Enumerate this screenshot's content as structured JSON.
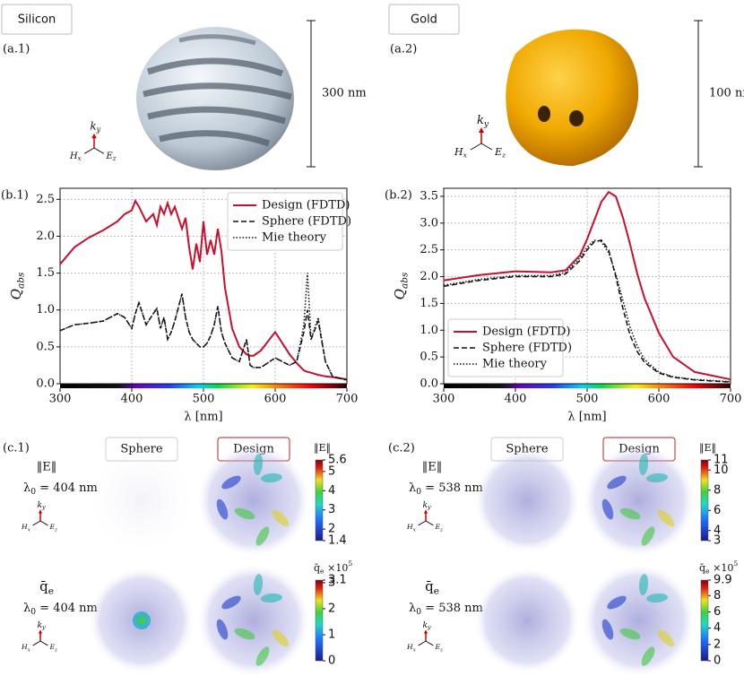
{
  "materials": [
    {
      "name": "Silicon",
      "tag": "(a.1)",
      "scale": "300 nm"
    },
    {
      "name": "Gold",
      "tag": "(a.2)",
      "scale": "100 nm"
    }
  ],
  "axes": {
    "k": {
      "base": "k",
      "sub": "y"
    },
    "h": {
      "base": "H",
      "sub": "x"
    },
    "e": {
      "base": "E",
      "sub": "z"
    }
  },
  "chart_data": [
    {
      "type": "line",
      "tag": "(b.1)",
      "xlabel": "λ [nm]",
      "ylabel": {
        "base": "Q",
        "sub": "abs"
      },
      "x": [
        300,
        320,
        340,
        360,
        380,
        390,
        400,
        405,
        410,
        420,
        430,
        435,
        440,
        445,
        450,
        455,
        460,
        470,
        475,
        480,
        485,
        490,
        495,
        500,
        505,
        510,
        515,
        520,
        525,
        530,
        540,
        550,
        560,
        565,
        570,
        580,
        600,
        620,
        630,
        640,
        645,
        650,
        660,
        670,
        680,
        700
      ],
      "series": [
        {
          "name": "Design (FDTD)",
          "color": "#c8102e",
          "style": "solid",
          "values": [
            1.62,
            1.85,
            1.98,
            2.08,
            2.2,
            2.3,
            2.35,
            2.48,
            2.4,
            2.2,
            2.3,
            2.15,
            2.4,
            2.3,
            2.45,
            2.3,
            2.4,
            2.1,
            2.25,
            1.85,
            1.55,
            1.9,
            1.65,
            2.2,
            1.75,
            1.95,
            1.75,
            2.1,
            1.8,
            1.3,
            0.75,
            0.5,
            0.4,
            0.38,
            0.38,
            0.45,
            0.7,
            0.4,
            0.28,
            0.18,
            0.16,
            0.15,
            0.12,
            0.1,
            0.09,
            0.06
          ]
        },
        {
          "name": "Sphere (FDTD)",
          "color": "#111111",
          "style": "dashed",
          "values": [
            0.72,
            0.8,
            0.82,
            0.85,
            0.95,
            0.9,
            0.75,
            0.95,
            1.1,
            0.8,
            0.95,
            1.02,
            0.75,
            0.9,
            0.6,
            0.7,
            0.85,
            1.22,
            0.9,
            0.7,
            0.6,
            0.55,
            0.5,
            0.5,
            0.55,
            0.65,
            0.8,
            1.05,
            0.7,
            0.55,
            0.35,
            0.3,
            0.6,
            0.25,
            0.22,
            0.22,
            0.35,
            0.25,
            0.3,
            0.7,
            1.0,
            0.6,
            0.85,
            0.3,
            0.1,
            0.05
          ]
        },
        {
          "name": "Mie theory",
          "color": "#111111",
          "style": "dotted",
          "values": [
            0.72,
            0.8,
            0.82,
            0.85,
            0.95,
            0.9,
            0.75,
            0.95,
            1.1,
            0.8,
            0.95,
            1.02,
            0.75,
            0.9,
            0.6,
            0.7,
            0.85,
            1.22,
            0.9,
            0.7,
            0.6,
            0.55,
            0.5,
            0.5,
            0.55,
            0.65,
            0.8,
            1.05,
            0.7,
            0.55,
            0.35,
            0.3,
            0.6,
            0.25,
            0.22,
            0.22,
            0.35,
            0.25,
            0.3,
            0.8,
            1.5,
            0.6,
            0.9,
            0.3,
            0.1,
            0.05
          ]
        }
      ],
      "xlim": [
        300,
        700
      ],
      "xticks": [
        300,
        400,
        500,
        600,
        700
      ],
      "ylim": [
        0,
        2.65
      ],
      "yticks": [
        {
          "value": 0,
          "label": "0.0"
        },
        {
          "value": 0.5,
          "label": "0.5"
        },
        {
          "value": 1,
          "label": "1.0"
        },
        {
          "value": 1.5,
          "label": "1.5"
        },
        {
          "value": 2,
          "label": "2.0"
        },
        {
          "value": 2.5,
          "label": "2.5"
        }
      ],
      "grid": true,
      "legend": "upper right"
    },
    {
      "type": "line",
      "tag": "(b.2)",
      "xlabel": "λ [nm]",
      "ylabel": {
        "base": "Q",
        "sub": "abs"
      },
      "x": [
        300,
        350,
        400,
        450,
        470,
        490,
        500,
        510,
        520,
        530,
        540,
        550,
        560,
        570,
        580,
        600,
        620,
        650,
        700
      ],
      "series": [
        {
          "name": "Design (FDTD)",
          "color": "#c8102e",
          "style": "solid",
          "values": [
            1.93,
            2.03,
            2.1,
            2.08,
            2.12,
            2.4,
            2.7,
            3.05,
            3.4,
            3.58,
            3.5,
            3.1,
            2.6,
            2.05,
            1.6,
            0.95,
            0.5,
            0.22,
            0.08
          ]
        },
        {
          "name": "Sphere (FDTD)",
          "color": "#111111",
          "style": "dashed",
          "values": [
            1.82,
            1.93,
            2.0,
            2.0,
            2.05,
            2.3,
            2.5,
            2.65,
            2.68,
            2.5,
            2.0,
            1.4,
            0.9,
            0.6,
            0.4,
            0.2,
            0.12,
            0.07,
            0.03
          ]
        },
        {
          "name": "Mie theory",
          "color": "#111111",
          "style": "dotted",
          "values": [
            1.84,
            1.95,
            2.02,
            2.02,
            2.08,
            2.35,
            2.55,
            2.68,
            2.65,
            2.45,
            2.05,
            1.55,
            1.05,
            0.7,
            0.45,
            0.22,
            0.13,
            0.08,
            0.04
          ]
        }
      ],
      "xlim": [
        300,
        700
      ],
      "xticks": [
        300,
        400,
        500,
        600,
        700
      ],
      "ylim": [
        0,
        3.65
      ],
      "yticks": [
        {
          "value": 0,
          "label": "0.0"
        },
        {
          "value": 0.5,
          "label": "0.5"
        },
        {
          "value": 1,
          "label": "1.0"
        },
        {
          "value": 1.5,
          "label": "1.5"
        },
        {
          "value": 2,
          "label": "2.0"
        },
        {
          "value": 2.5,
          "label": "2.5"
        },
        {
          "value": 3,
          "label": "3.0"
        },
        {
          "value": 3.5,
          "label": "3.5"
        }
      ],
      "grid": true,
      "legend": "lower left"
    }
  ],
  "fields": [
    {
      "tag": "(c.1)",
      "columns": [
        "Sphere",
        "Design"
      ],
      "rows": [
        {
          "quantity": "‖E‖",
          "wavelength": {
            "base": "λ",
            "sub": "0",
            "rest": " = 404 nm"
          },
          "colorbar": {
            "title": {
              "base": "‖E‖"
            },
            "lim": [
              1.4,
              5.6
            ],
            "ticks": [
              1.4,
              2,
              3,
              4,
              5,
              5.6
            ]
          }
        },
        {
          "quantity": {
            "base": "q̄",
            "sub": "e"
          },
          "wavelength": {
            "base": "λ",
            "sub": "0",
            "rest": " = 404 nm"
          },
          "colorbar": {
            "title": {
              "base": "q̄",
              "sub": "e",
              "rest": " ×10",
              "sup": "5"
            },
            "lim": [
              0,
              3.1
            ],
            "ticks": [
              0,
              1,
              2,
              3,
              3.1
            ]
          }
        }
      ]
    },
    {
      "tag": "(c.2)",
      "columns": [
        "Sphere",
        "Design"
      ],
      "rows": [
        {
          "quantity": "‖E‖",
          "wavelength": {
            "base": "λ",
            "sub": "0",
            "rest": " = 538 nm"
          },
          "colorbar": {
            "title": {
              "base": "‖E‖"
            },
            "lim": [
              3,
              11
            ],
            "ticks": [
              3,
              4,
              6,
              8,
              10,
              11
            ]
          }
        },
        {
          "quantity": {
            "base": "q̄",
            "sub": "e"
          },
          "wavelength": {
            "base": "λ",
            "sub": "0",
            "rest": " = 538 nm"
          },
          "colorbar": {
            "title": {
              "base": "q̄",
              "sub": "e",
              "rest": " ×10",
              "sup": "5"
            },
            "lim": [
              0,
              9.9
            ],
            "ticks": [
              0,
              2,
              4,
              6,
              8,
              9.9
            ]
          }
        }
      ]
    }
  ]
}
